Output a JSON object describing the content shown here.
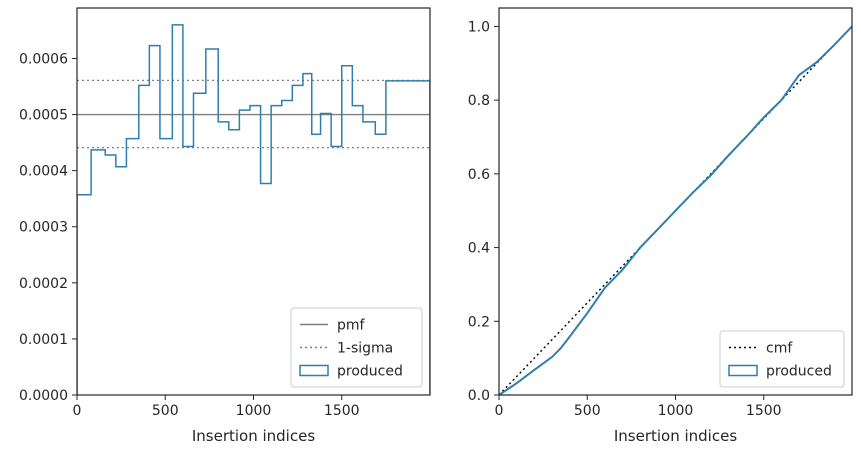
{
  "chart_data": [
    {
      "type": "step",
      "xlabel": "Insertion indices",
      "ylabel": "",
      "xlim": [
        0,
        2000
      ],
      "ylim": [
        0,
        0.00069
      ],
      "x_ticks": [
        0,
        500,
        1000,
        1500
      ],
      "x_tick_labels": [
        "0",
        "500",
        "1000",
        "1500"
      ],
      "y_ticks": [
        0,
        0.0001,
        0.0002,
        0.0003,
        0.0004,
        0.0005,
        0.0006
      ],
      "y_tick_labels": [
        "0.0000",
        "0.0001",
        "0.0002",
        "0.0003",
        "0.0004",
        "0.0005",
        "0.0006"
      ],
      "legend_position": "bottom-right",
      "reference_lines": [
        {
          "name": "pmf",
          "value": 0.0005,
          "style": "solid",
          "color": "#808080"
        },
        {
          "name": "1-sigma",
          "value": 0.000441,
          "style": "dotted",
          "color": "#808080"
        },
        {
          "name": "1-sigma",
          "value": 0.000561,
          "style": "dotted",
          "color": "#808080"
        }
      ],
      "series": [
        {
          "name": "produced",
          "color": "#2e7fad",
          "bin_edges": [
            0,
            80,
            160,
            220,
            280,
            350,
            410,
            470,
            540,
            600,
            660,
            730,
            800,
            860,
            920,
            980,
            1040,
            1100,
            1160,
            1220,
            1280,
            1330,
            1380,
            1440,
            1500,
            1560,
            1620,
            1690,
            1750,
            1810,
            1880,
            1940,
            2000
          ],
          "values": [
            0.000357,
            0.000437,
            0.000428,
            0.000407,
            0.000457,
            0.000552,
            0.000623,
            0.000457,
            0.00066,
            0.000443,
            0.000538,
            0.000617,
            0.000487,
            0.000473,
            0.000508,
            0.000516,
            0.000377,
            0.000516,
            0.000525,
            0.000552,
            0.000573,
            0.000465,
            0.000502,
            0.000443,
            0.000587,
            0.000516,
            0.000487,
            0.000465,
            0.00056,
            0.00056,
            0.00056,
            0.00056
          ]
        }
      ]
    },
    {
      "type": "line",
      "xlabel": "Insertion indices",
      "ylabel": "",
      "xlim": [
        0,
        2000
      ],
      "ylim": [
        0,
        1.05
      ],
      "x_ticks": [
        0,
        500,
        1000,
        1500
      ],
      "x_tick_labels": [
        "0",
        "500",
        "1000",
        "1500"
      ],
      "y_ticks": [
        0,
        0.2,
        0.4,
        0.6,
        0.8,
        1.0
      ],
      "y_tick_labels": [
        "0.0",
        "0.2",
        "0.4",
        "0.6",
        "0.8",
        "1.0"
      ],
      "legend_position": "bottom-right",
      "series": [
        {
          "name": "cmf",
          "style": "dotted",
          "color": "#000000",
          "x": [
            0,
            2000
          ],
          "y": [
            0,
            1.0
          ]
        },
        {
          "name": "produced",
          "style": "solid",
          "color": "#2e7fad",
          "x": [
            0,
            100,
            200,
            300,
            350,
            400,
            500,
            600,
            700,
            800,
            900,
            1000,
            1100,
            1200,
            1300,
            1400,
            1500,
            1600,
            1700,
            1800,
            1900,
            2000
          ],
          "y": [
            0,
            0.032,
            0.068,
            0.103,
            0.127,
            0.158,
            0.222,
            0.291,
            0.34,
            0.4,
            0.45,
            0.5,
            0.55,
            0.596,
            0.65,
            0.7,
            0.753,
            0.8,
            0.868,
            0.903,
            0.95,
            1.0
          ]
        }
      ]
    }
  ]
}
